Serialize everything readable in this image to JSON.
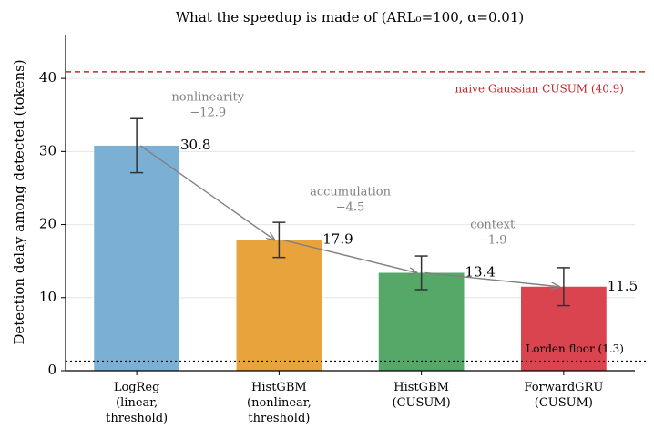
{
  "chart_data": {
    "type": "bar",
    "title": "What the speedup is made of (ARL₀=100, α=0.01)",
    "ylabel": "Detection delay among detected (tokens)",
    "categories": [
      "LogReg\n(linear,\nthreshold)",
      "HistGBM\n(nonlinear,\nthreshold)",
      "HistGBM\n(CUSUM)",
      "ForwardGRU\n(CUSUM)"
    ],
    "values": [
      30.8,
      17.9,
      13.4,
      11.5
    ],
    "errors": [
      3.7,
      2.4,
      2.3,
      2.6
    ],
    "colors": [
      "#7bafd4",
      "#e8a33d",
      "#55a868",
      "#d9444f"
    ],
    "ylim": [
      0,
      46
    ],
    "yticks": [
      0,
      10,
      20,
      30,
      40
    ],
    "grid": true,
    "reference_lines": [
      {
        "label": "naive Gaussian CUSUM (40.9)",
        "value": 40.9,
        "color": "#c0282d",
        "style": "dashed"
      },
      {
        "label": "Lorden floor (1.3)",
        "value": 1.3,
        "color": "#000000",
        "style": "dotted"
      }
    ],
    "annotations": [
      {
        "text": "nonlinearity",
        "delta": "−12.9"
      },
      {
        "text": "accumulation",
        "delta": "−4.5"
      },
      {
        "text": "context",
        "delta": "−1.9"
      }
    ]
  }
}
